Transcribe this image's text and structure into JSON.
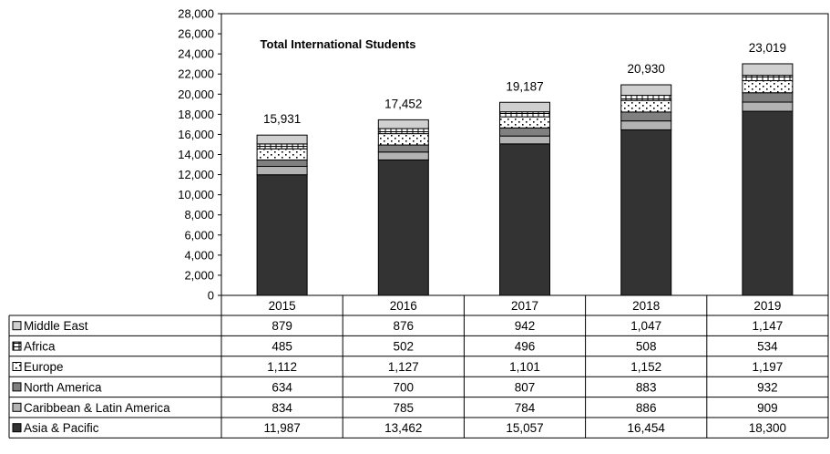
{
  "chart_data": {
    "type": "bar",
    "stacked": true,
    "title": "Total International Students",
    "categories": [
      "2015",
      "2016",
      "2017",
      "2018",
      "2019"
    ],
    "totals": [
      "15,931",
      "17,452",
      "19,187",
      "20,930",
      "23,019"
    ],
    "ylim": [
      0,
      28000
    ],
    "yticks": [
      0,
      2000,
      4000,
      6000,
      8000,
      10000,
      12000,
      14000,
      16000,
      18000,
      20000,
      22000,
      24000,
      26000,
      28000
    ],
    "ytick_labels": [
      "0",
      "2,000",
      "4,000",
      "6,000",
      "8,000",
      "10,000",
      "12,000",
      "14,000",
      "16,000",
      "18,000",
      "20,000",
      "22,000",
      "24,000",
      "26,000",
      "28,000"
    ],
    "grid": false,
    "legend": "data-table",
    "series": [
      {
        "name": "Asia & Pacific",
        "values": [
          11987,
          13462,
          15057,
          16454,
          18300
        ],
        "labels": [
          "11,987",
          "13,462",
          "15,057",
          "16,454",
          "18,300"
        ],
        "color": "#333333",
        "pattern": "solid"
      },
      {
        "name": "Caribbean & Latin America",
        "values": [
          834,
          785,
          784,
          886,
          909
        ],
        "labels": [
          "834",
          "785",
          "784",
          "886",
          "909"
        ],
        "color": "#b3b3b3",
        "pattern": "solid"
      },
      {
        "name": "North America",
        "values": [
          634,
          700,
          807,
          883,
          932
        ],
        "labels": [
          "634",
          "700",
          "807",
          "883",
          "932"
        ],
        "color": "#808080",
        "pattern": "solid"
      },
      {
        "name": "Europe",
        "values": [
          1112,
          1127,
          1101,
          1152,
          1197
        ],
        "labels": [
          "1,112",
          "1,127",
          "1,101",
          "1,152",
          "1,197"
        ],
        "color": "#ffffff",
        "pattern": "dots"
      },
      {
        "name": "Africa",
        "values": [
          485,
          502,
          496,
          508,
          534
        ],
        "labels": [
          "485",
          "502",
          "496",
          "508",
          "534"
        ],
        "color": "#ffffff",
        "pattern": "bricks"
      },
      {
        "name": "Middle East",
        "values": [
          879,
          876,
          942,
          1047,
          1147
        ],
        "labels": [
          "879",
          "876",
          "942",
          "1,047",
          "1,147"
        ],
        "color": "#d0d0d0",
        "pattern": "solid"
      }
    ]
  }
}
